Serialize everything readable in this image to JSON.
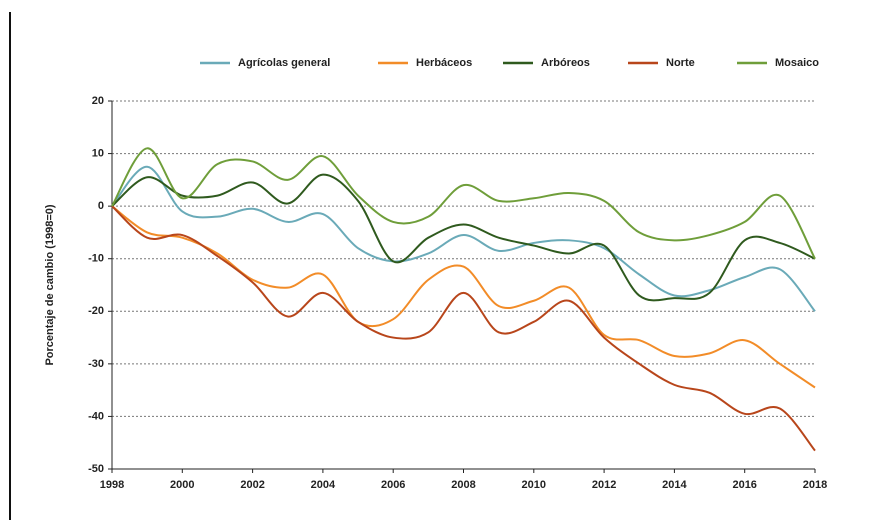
{
  "chart_data": {
    "type": "line",
    "ylabel": "Porcentaje de cambio (1998=0)",
    "x": [
      1998,
      1999,
      2000,
      2001,
      2002,
      2003,
      2004,
      2005,
      2006,
      2007,
      2008,
      2009,
      2010,
      2011,
      2012,
      2013,
      2014,
      2015,
      2016,
      2017,
      2018
    ],
    "xlim": [
      1998,
      2018
    ],
    "xticks": [
      1998,
      2000,
      2002,
      2004,
      2006,
      2008,
      2010,
      2012,
      2014,
      2016,
      2018
    ],
    "ylim": [
      -50,
      20
    ],
    "yticks": [
      -50,
      -40,
      -30,
      -20,
      -10,
      0,
      10,
      20
    ],
    "grid": true,
    "series": [
      {
        "name": "Agrícolas general",
        "color": "#6aaab8",
        "values": [
          0,
          7.5,
          -1,
          -2,
          -0.5,
          -3,
          -1.5,
          -8,
          -10.5,
          -9,
          -5.5,
          -8.5,
          -7,
          -6.5,
          -8,
          -13,
          -17,
          -16,
          -13.5,
          -12,
          -20
        ]
      },
      {
        "name": "Herbáceos",
        "color": "#f28c28",
        "values": [
          0,
          -5,
          -6,
          -9,
          -14,
          -15.5,
          -13,
          -22,
          -21.5,
          -14,
          -11.5,
          -19,
          -18,
          -15.5,
          -24.5,
          -25.5,
          -28.5,
          -28,
          -25.5,
          -30,
          -34.5
        ]
      },
      {
        "name": "Arbóreos",
        "color": "#2f5a1e",
        "values": [
          0,
          5.5,
          2,
          2,
          4.5,
          0.5,
          6,
          1,
          -10.5,
          -6,
          -3.5,
          -6,
          -7.5,
          -9,
          -7.5,
          -17,
          -17.5,
          -16.5,
          -6.5,
          -7,
          -10
        ]
      },
      {
        "name": "Norte",
        "color": "#b8461b",
        "values": [
          0,
          -6,
          -5.5,
          -9.5,
          -14.5,
          -21,
          -16.5,
          -22,
          -25,
          -24,
          -16.5,
          -24,
          -22,
          -18,
          -25,
          -30,
          -34,
          -35.5,
          -39.5,
          -38.5,
          -46.5
        ]
      },
      {
        "name": "Mosaico",
        "color": "#6f9e3a",
        "values": [
          0,
          11,
          1.5,
          8,
          8.5,
          5,
          9.5,
          2,
          -3,
          -2,
          4,
          1,
          1.5,
          2.5,
          1,
          -5,
          -6.5,
          -5.5,
          -3,
          2,
          -10
        ]
      }
    ]
  }
}
